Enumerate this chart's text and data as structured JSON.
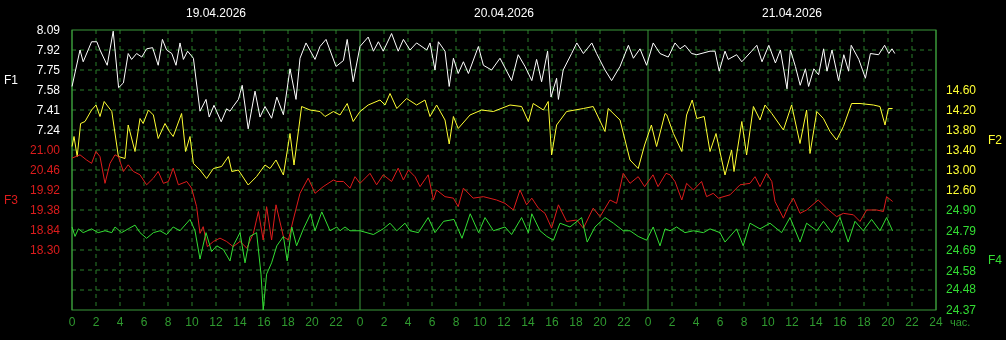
{
  "chart_data": [
    {
      "type": "line",
      "xlabel": "час.",
      "ylabel": "F1",
      "y2label": "F2",
      "xlim": [
        "2026-04-19T00:00",
        "2026-04-22T00:00"
      ],
      "xticks": [
        {
          "value": "2026-04-19T00:00",
          "label": "0"
        },
        {
          "value": "2026-04-19T02:00",
          "label": "2"
        },
        {
          "value": "2026-04-19T04:00",
          "label": "4"
        },
        {
          "value": "2026-04-19T06:00",
          "label": "6"
        },
        {
          "value": "2026-04-19T08:00",
          "label": "8"
        },
        {
          "value": "2026-04-19T10:00",
          "label": "10"
        },
        {
          "value": "2026-04-19T12:00",
          "label": "12"
        },
        {
          "value": "2026-04-19T14:00",
          "label": "14"
        },
        {
          "value": "2026-04-19T16:00",
          "label": "16"
        },
        {
          "value": "2026-04-19T18:00",
          "label": "18"
        },
        {
          "value": "2026-04-19T20:00",
          "label": "20"
        },
        {
          "value": "2026-04-19T22:00",
          "label": "22"
        },
        {
          "value": "2026-04-20T00:00",
          "label": "0"
        },
        {
          "value": "2026-04-20T02:00",
          "label": "2"
        },
        {
          "value": "2026-04-20T04:00",
          "label": "4"
        },
        {
          "value": "2026-04-20T06:00",
          "label": "6"
        },
        {
          "value": "2026-04-20T08:00",
          "label": "8"
        },
        {
          "value": "2026-04-20T10:00",
          "label": "10"
        },
        {
          "value": "2026-04-20T12:00",
          "label": "12"
        },
        {
          "value": "2026-04-20T14:00",
          "label": "14"
        },
        {
          "value": "2026-04-20T16:00",
          "label": "16"
        },
        {
          "value": "2026-04-20T18:00",
          "label": "18"
        },
        {
          "value": "2026-04-20T20:00",
          "label": "20"
        },
        {
          "value": "2026-04-20T22:00",
          "label": "22"
        },
        {
          "value": "2026-04-21T00:00",
          "label": "0"
        },
        {
          "value": "2026-04-21T02:00",
          "label": "2"
        },
        {
          "value": "2026-04-21T04:00",
          "label": "4"
        },
        {
          "value": "2026-04-21T06:00",
          "label": "6"
        },
        {
          "value": "2026-04-21T08:00",
          "label": "8"
        },
        {
          "value": "2026-04-21T10:00",
          "label": "10"
        },
        {
          "value": "2026-04-21T12:00",
          "label": "12"
        },
        {
          "value": "2026-04-21T14:00",
          "label": "14"
        },
        {
          "value": "2026-04-21T16:00",
          "label": "16"
        },
        {
          "value": "2026-04-21T18:00",
          "label": "18"
        },
        {
          "value": "2026-04-21T20:00",
          "label": "20"
        },
        {
          "value": "2026-04-21T22:00",
          "label": "22"
        },
        {
          "value": "2026-04-22T00:00",
          "label": "24"
        }
      ],
      "x2lim": [
        "2026-04-19T00:00",
        "2026-04-22T00:00"
      ],
      "x2ticks": [
        {
          "value": "2026-04-19T12:00",
          "label": "19.04.2026"
        },
        {
          "value": "2026-04-20T12:00",
          "label": "20.04.2026"
        },
        {
          "value": "2026-04-21T12:00",
          "label": "21.04.2026"
        }
      ],
      "ylim": [
        5.71,
        8.09
      ],
      "yticks": [
        8.09,
        7.92,
        7.75,
        7.58,
        7.41,
        7.24
      ],
      "y2lim": [
        10.2,
        15.8
      ],
      "y2ticks": [
        {
          "value": 14.6,
          "label": "14.60"
        },
        {
          "value": 14.2,
          "label": "14.20"
        },
        {
          "value": 13.8,
          "label": "13.80"
        },
        {
          "value": 13.4,
          "label": "13.40"
        },
        {
          "value": 13.0,
          "label": "13.00"
        },
        {
          "value": 12.6,
          "label": "12.60"
        }
      ],
      "grid": true,
      "series": [
        {
          "color": "#ffffff",
          "x": [
            "2026-04-19T00:00",
            "2026-04-19T00:40",
            "2026-04-19T00:56",
            "2026-04-19T01:38",
            "2026-04-19T02:04",
            "2026-04-19T02:20",
            "2026-04-19T02:56",
            "2026-04-19T03:26",
            "2026-04-19T03:53",
            "2026-04-19T04:17",
            "2026-04-19T04:41",
            "2026-04-19T04:58",
            "2026-04-19T05:23",
            "2026-04-19T05:49",
            "2026-04-19T06:13",
            "2026-04-19T06:43",
            "2026-04-19T07:11",
            "2026-04-19T07:32",
            "2026-04-19T07:53",
            "2026-04-19T08:19",
            "2026-04-19T08:40",
            "2026-04-19T09:00",
            "2026-04-19T09:17",
            "2026-04-19T09:38",
            "2026-04-19T10:07",
            "2026-04-19T10:40",
            "2026-04-19T11:10",
            "2026-04-19T11:26",
            "2026-04-19T11:50",
            "2026-04-19T12:26",
            "2026-04-19T12:53",
            "2026-04-19T13:10",
            "2026-04-19T13:26",
            "2026-04-19T13:52",
            "2026-04-19T14:11",
            "2026-04-19T14:41",
            "2026-04-19T15:15",
            "2026-04-19T15:40",
            "2026-04-19T16:05",
            "2026-04-19T16:38",
            "2026-04-19T17:04",
            "2026-04-19T17:37",
            "2026-04-19T18:10",
            "2026-04-19T18:40",
            "2026-04-19T19:00",
            "2026-04-19T19:30",
            "2026-04-19T20:15",
            "2026-04-19T20:40",
            "2026-04-19T21:10",
            "2026-04-19T22:00",
            "2026-04-19T22:37",
            "2026-04-19T22:56",
            "2026-04-19T23:26",
            "2026-04-20T00:00",
            "2026-04-20T00:41",
            "2026-04-20T01:07",
            "2026-04-20T01:32",
            "2026-04-20T01:56",
            "2026-04-20T02:38",
            "2026-04-20T03:11",
            "2026-04-20T03:37",
            "2026-04-20T04:10",
            "2026-04-20T04:43",
            "2026-04-20T05:34",
            "2026-04-20T05:50",
            "2026-04-20T06:15",
            "2026-04-20T06:32",
            "2026-04-20T07:05",
            "2026-04-20T07:26",
            "2026-04-20T07:47",
            "2026-04-20T08:11",
            "2026-04-20T08:37",
            "2026-04-20T09:02",
            "2026-04-20T09:52",
            "2026-04-20T10:17",
            "2026-04-20T10:58",
            "2026-04-20T11:40",
            "2026-04-20T12:38",
            "2026-04-20T13:11",
            "2026-04-20T13:45",
            "2026-04-20T14:19",
            "2026-04-20T14:43",
            "2026-04-20T15:08",
            "2026-04-20T15:38",
            "2026-04-20T15:55",
            "2026-04-20T16:23",
            "2026-04-20T16:32",
            "2026-04-20T16:56",
            "2026-04-20T17:38",
            "2026-04-20T18:04",
            "2026-04-20T18:37",
            "2026-04-20T19:19",
            "2026-04-20T19:43",
            "2026-04-20T20:25",
            "2026-04-20T20:58",
            "2026-04-20T21:40",
            "2026-04-20T22:22",
            "2026-04-20T22:47",
            "2026-04-20T23:20",
            "2026-04-20T23:53",
            "2026-04-21T00:26",
            "2026-04-21T01:00",
            "2026-04-21T01:41",
            "2026-04-21T01:50",
            "2026-04-21T02:15",
            "2026-04-21T02:40",
            "2026-04-21T03:05",
            "2026-04-21T03:38",
            "2026-04-21T04:04",
            "2026-04-21T05:10",
            "2026-04-21T05:35",
            "2026-04-21T05:56",
            "2026-04-21T06:25",
            "2026-04-21T06:41",
            "2026-04-21T07:23",
            "2026-04-21T07:49",
            "2026-04-21T08:38",
            "2026-04-21T09:04",
            "2026-04-21T09:30",
            "2026-04-21T10:04",
            "2026-04-21T10:37",
            "2026-04-21T11:02",
            "2026-04-21T11:35",
            "2026-04-21T11:52",
            "2026-04-21T12:17",
            "2026-04-21T12:41",
            "2026-04-21T13:07",
            "2026-04-21T13:23",
            "2026-04-21T13:49",
            "2026-04-21T14:13",
            "2026-04-21T14:38",
            "2026-04-21T14:55",
            "2026-04-21T15:20",
            "2026-04-21T15:53",
            "2026-04-21T16:19",
            "2026-04-21T16:43",
            "2026-04-21T16:56",
            "2026-04-21T17:34",
            "2026-04-21T18:07",
            "2026-04-21T18:32",
            "2026-04-21T19:13",
            "2026-04-21T19:43",
            "2026-04-21T20:04",
            "2026-04-21T20:20",
            "2026-04-21T20:34"
          ],
          "values": [
            7.61,
            7.92,
            7.82,
            7.99,
            7.99,
            7.92,
            7.79,
            8.08,
            7.6,
            7.64,
            7.89,
            7.84,
            7.89,
            7.86,
            7.93,
            7.94,
            7.79,
            8.01,
            7.92,
            7.89,
            7.79,
            7.98,
            7.84,
            7.91,
            7.85,
            7.4,
            7.5,
            7.35,
            7.45,
            7.31,
            7.42,
            7.4,
            7.44,
            7.5,
            7.62,
            7.25,
            7.57,
            7.35,
            7.44,
            7.34,
            7.52,
            7.37,
            7.76,
            7.5,
            7.85,
            7.98,
            7.84,
            7.95,
            8.01,
            7.78,
            7.83,
            8.01,
            7.65,
            7.95,
            8.03,
            7.91,
            7.99,
            7.91,
            8.06,
            7.91,
            8.01,
            7.92,
            7.98,
            7.92,
            7.98,
            7.75,
            7.99,
            7.91,
            7.61,
            7.85,
            7.72,
            7.82,
            7.72,
            7.95,
            7.79,
            7.75,
            7.85,
            7.66,
            7.88,
            7.78,
            7.66,
            7.84,
            7.65,
            7.91,
            7.52,
            7.68,
            7.5,
            7.75,
            7.89,
            7.98,
            7.89,
            7.98,
            7.89,
            7.75,
            7.66,
            7.78,
            7.96,
            7.85,
            7.93,
            7.79,
            7.98,
            7.89,
            7.86,
            7.89,
            7.98,
            7.93,
            7.96,
            7.89,
            7.88,
            7.91,
            7.91,
            7.74,
            7.91,
            7.84,
            7.88,
            7.82,
            7.91,
            7.96,
            7.82,
            7.96,
            7.81,
            7.92,
            7.59,
            7.92,
            7.78,
            7.62,
            7.76,
            7.61,
            7.76,
            7.71,
            7.93,
            7.74,
            7.92,
            7.66,
            7.88,
            7.74,
            7.96,
            7.84,
            7.68,
            7.89,
            7.88,
            7.96,
            7.89,
            7.93,
            7.89
          ]
        },
        {
          "axis": "y2",
          "color": "#ffff33",
          "x": [
            "2026-04-19T00:00",
            "2026-04-19T00:10",
            "2026-04-19T00:26",
            "2026-04-19T00:43",
            "2026-04-19T01:05",
            "2026-04-19T01:38",
            "2026-04-19T02:00",
            "2026-04-19T02:20",
            "2026-04-19T02:41",
            "2026-04-19T03:19",
            "2026-04-19T03:52",
            "2026-04-19T04:25",
            "2026-04-19T04:41",
            "2026-04-19T05:15",
            "2026-04-19T05:40",
            "2026-04-19T05:56",
            "2026-04-19T06:22",
            "2026-04-19T06:47",
            "2026-04-19T07:11",
            "2026-04-19T07:45",
            "2026-04-19T08:07",
            "2026-04-19T08:26",
            "2026-04-19T09:08",
            "2026-04-19T09:28",
            "2026-04-19T09:50",
            "2026-04-19T10:07",
            "2026-04-19T10:40",
            "2026-04-19T11:13",
            "2026-04-19T11:47",
            "2026-04-19T12:28",
            "2026-04-19T13:02",
            "2026-04-19T13:19",
            "2026-04-19T13:52",
            "2026-04-19T14:41",
            "2026-04-19T15:23",
            "2026-04-19T16:05",
            "2026-04-19T16:30",
            "2026-04-19T17:00",
            "2026-04-19T17:37",
            "2026-04-19T18:10",
            "2026-04-19T18:30",
            "2026-04-19T19:08",
            "2026-04-19T19:50",
            "2026-04-19T20:40",
            "2026-04-19T21:05",
            "2026-04-19T21:47",
            "2026-04-19T22:20",
            "2026-04-19T22:56",
            "2026-04-19T23:26",
            "2026-04-20T00:00",
            "2026-04-20T00:41",
            "2026-04-20T01:40",
            "2026-04-20T02:05",
            "2026-04-20T02:30",
            "2026-04-20T03:04",
            "2026-04-20T03:53",
            "2026-04-20T04:43",
            "2026-04-20T05:25",
            "2026-04-20T05:50",
            "2026-04-20T06:23",
            "2026-04-20T07:05",
            "2026-04-20T07:26",
            "2026-04-20T07:47",
            "2026-04-20T08:11",
            "2026-04-20T09:10",
            "2026-04-20T10:08",
            "2026-04-20T11:07",
            "2026-04-20T12:30",
            "2026-04-20T13:28",
            "2026-04-20T14:02",
            "2026-04-20T14:26",
            "2026-04-20T15:17",
            "2026-04-20T15:41",
            "2026-04-20T15:58",
            "2026-04-20T16:23",
            "2026-04-20T17:13",
            "2026-04-20T18:37",
            "2026-04-20T19:26",
            "2026-04-20T20:25",
            "2026-04-20T20:41",
            "2026-04-20T21:40",
            "2026-04-20T22:30",
            "2026-04-20T23:11",
            "2026-04-20T23:43",
            "2026-04-21T00:17",
            "2026-04-21T00:43",
            "2026-04-21T01:25",
            "2026-04-21T01:34",
            "2026-04-21T02:07",
            "2026-04-21T02:49",
            "2026-04-21T03:13",
            "2026-04-21T03:41",
            "2026-04-21T04:04",
            "2026-04-21T04:41",
            "2026-04-21T05:10",
            "2026-04-21T05:40",
            "2026-04-21T06:25",
            "2026-04-21T06:58",
            "2026-04-21T07:10",
            "2026-04-21T07:49",
            "2026-04-21T08:13",
            "2026-04-21T08:47",
            "2026-04-21T09:20",
            "2026-04-21T09:45",
            "2026-04-21T10:19",
            "2026-04-21T11:17",
            "2026-04-21T11:58",
            "2026-04-21T12:40",
            "2026-04-21T13:13",
            "2026-04-21T13:30",
            "2026-04-21T14:04",
            "2026-04-21T14:37",
            "2026-04-21T15:10",
            "2026-04-21T15:43",
            "2026-04-21T16:17",
            "2026-04-21T16:58",
            "2026-04-21T17:40",
            "2026-04-21T18:47",
            "2026-04-21T19:20",
            "2026-04-21T19:45",
            "2026-04-21T20:02",
            "2026-04-21T20:23"
          ],
          "values": [
            13.47,
            13.67,
            13.27,
            13.93,
            13.97,
            14.2,
            14.3,
            14.07,
            14.37,
            14.17,
            13.27,
            13.23,
            13.9,
            13.37,
            14.03,
            13.93,
            14.2,
            14.1,
            13.63,
            13.93,
            13.77,
            13.67,
            14.13,
            13.37,
            13.67,
            13.13,
            13.0,
            12.83,
            13.03,
            13.07,
            13.27,
            12.97,
            13.0,
            12.7,
            12.87,
            13.1,
            13.03,
            13.2,
            12.9,
            13.73,
            13.1,
            14.27,
            14.2,
            14.17,
            14.07,
            14.17,
            14.1,
            14.33,
            13.97,
            14.17,
            14.3,
            14.4,
            14.3,
            14.53,
            14.23,
            14.43,
            14.3,
            14.4,
            14.07,
            14.3,
            14.0,
            13.52,
            14.07,
            13.83,
            14.1,
            14.2,
            14.17,
            14.3,
            14.27,
            13.97,
            14.33,
            14.2,
            14.37,
            13.3,
            13.9,
            14.17,
            14.23,
            14.27,
            13.77,
            14.23,
            14.0,
            13.2,
            13.03,
            13.5,
            13.9,
            13.47,
            14.13,
            14.1,
            13.73,
            13.37,
            14.1,
            14.4,
            14.03,
            14.07,
            13.37,
            13.73,
            12.9,
            13.4,
            12.97,
            13.97,
            13.3,
            14.27,
            14.0,
            14.3,
            14.13,
            13.8,
            14.3,
            13.53,
            14.2,
            13.33,
            14.17,
            14.03,
            13.77,
            13.6,
            13.87,
            14.33,
            14.33,
            14.3,
            14.27,
            13.9,
            14.23,
            14.23
          ]
        }
      ]
    },
    {
      "type": "line",
      "ylabel": "F3",
      "y2label": "F4",
      "tick_labels": "y",
      "xlim": [
        "2026-04-19T00:00",
        "2026-04-22T00:00"
      ],
      "ylim": [
        16.68,
        24.24
      ],
      "yticks": [
        {
          "value": 21.0,
          "label": "21.00"
        },
        20.46,
        19.92,
        19.38,
        18.84,
        {
          "value": 18.3,
          "label": "18.30"
        }
      ],
      "y2lim": [
        24.37,
        25.854
      ],
      "y2ticks": [
        {
          "value": 24.9,
          "label": "24.90"
        },
        24.79,
        24.69,
        24.58,
        24.48,
        24.37
      ],
      "series": [
        {
          "color": "#dd1c1c",
          "x": [
            "2026-04-19T00:00",
            "2026-04-19T00:40",
            "2026-04-19T01:13",
            "2026-04-19T01:38",
            "2026-04-19T02:00",
            "2026-04-19T02:20",
            "2026-04-19T02:45",
            "2026-04-19T03:10",
            "2026-04-19T03:35",
            "2026-04-19T03:52",
            "2026-04-19T04:17",
            "2026-04-19T04:41",
            "2026-04-19T05:07",
            "2026-04-19T05:40",
            "2026-04-19T06:13",
            "2026-04-19T06:47",
            "2026-04-19T07:11",
            "2026-04-19T07:37",
            "2026-04-19T08:02",
            "2026-04-19T08:26",
            "2026-04-19T08:52",
            "2026-04-19T09:34",
            "2026-04-19T09:58",
            "2026-04-19T10:23",
            "2026-04-19T10:40",
            "2026-04-19T10:56",
            "2026-04-19T11:17",
            "2026-04-19T11:47",
            "2026-04-19T12:20",
            "2026-04-19T12:53",
            "2026-04-19T13:26",
            "2026-04-19T14:00",
            "2026-04-19T14:34",
            "2026-04-19T15:07",
            "2026-04-19T15:32",
            "2026-04-19T15:56",
            "2026-04-19T16:13",
            "2026-04-19T16:38",
            "2026-04-19T17:00",
            "2026-04-19T17:37",
            "2026-04-19T18:02",
            "2026-04-19T18:26",
            "2026-04-19T19:00",
            "2026-04-19T19:41",
            "2026-04-19T20:15",
            "2026-04-19T20:56",
            "2026-04-19T21:47",
            "2026-04-19T22:04",
            "2026-04-19T22:37",
            "2026-04-19T23:10",
            "2026-04-19T23:35",
            "2026-04-20T00:00",
            "2026-04-20T00:50",
            "2026-04-20T01:23",
            "2026-04-20T01:56",
            "2026-04-20T02:38",
            "2026-04-20T03:11",
            "2026-04-20T03:37",
            "2026-04-20T04:02",
            "2026-04-20T04:35",
            "2026-04-20T05:00",
            "2026-04-20T05:41",
            "2026-04-20T06:07",
            "2026-04-20T06:23",
            "2026-04-20T07:05",
            "2026-04-20T07:47",
            "2026-04-20T08:11",
            "2026-04-20T08:37",
            "2026-04-20T09:26",
            "2026-04-20T10:17",
            "2026-04-20T11:23",
            "2026-04-20T12:05",
            "2026-04-20T12:47",
            "2026-04-20T13:20",
            "2026-04-20T13:53",
            "2026-04-20T14:19",
            "2026-04-20T14:52",
            "2026-04-20T15:25",
            "2026-04-20T15:58",
            "2026-04-20T16:32",
            "2026-04-20T17:13",
            "2026-04-20T18:04",
            "2026-04-20T18:37",
            "2026-04-20T19:26",
            "2026-04-20T20:00",
            "2026-04-20T20:50",
            "2026-04-20T21:23",
            "2026-04-20T21:56",
            "2026-04-20T22:30",
            "2026-04-20T23:11",
            "2026-04-20T23:43",
            "2026-04-21T00:25",
            "2026-04-21T00:50",
            "2026-04-21T01:30",
            "2026-04-21T01:50",
            "2026-04-21T02:15",
            "2026-04-21T02:49",
            "2026-04-21T03:13",
            "2026-04-21T03:47",
            "2026-04-21T04:28",
            "2026-04-21T04:53",
            "2026-04-21T05:26",
            "2026-04-21T05:52",
            "2026-04-21T06:50",
            "2026-04-21T07:40",
            "2026-04-21T08:30",
            "2026-04-21T08:55",
            "2026-04-21T09:20",
            "2026-04-21T09:53",
            "2026-04-21T10:19",
            "2026-04-21T10:35",
            "2026-04-21T11:17",
            "2026-04-21T11:41",
            "2026-04-21T12:07",
            "2026-04-21T12:40",
            "2026-04-21T13:13",
            "2026-04-21T14:11",
            "2026-04-21T14:53",
            "2026-04-21T15:43",
            "2026-04-21T16:17",
            "2026-04-21T17:07",
            "2026-04-21T17:40",
            "2026-04-21T18:13",
            "2026-04-21T19:04",
            "2026-04-21T19:37",
            "2026-04-21T19:53",
            "2026-04-21T20:23"
          ],
          "values": [
            20.78,
            20.87,
            20.73,
            20.64,
            20.96,
            20.82,
            20.1,
            20.64,
            20.87,
            20.82,
            20.42,
            20.6,
            20.42,
            20.33,
            20.06,
            20.24,
            20.42,
            20.1,
            20.15,
            20.51,
            20.06,
            20.15,
            19.97,
            19.47,
            18.75,
            18.93,
            18.39,
            18.53,
            18.62,
            18.53,
            18.39,
            18.53,
            18.35,
            18.75,
            19.34,
            18.57,
            19.47,
            18.57,
            19.52,
            18.66,
            18.57,
            19.11,
            19.83,
            20.24,
            19.83,
            20.01,
            20.19,
            20.15,
            20.15,
            19.97,
            20.28,
            20.1,
            20.37,
            20.06,
            20.33,
            20.15,
            20.51,
            20.19,
            20.46,
            20.28,
            20.01,
            20.33,
            19.65,
            19.92,
            19.74,
            19.7,
            19.47,
            19.97,
            19.7,
            19.74,
            19.65,
            19.56,
            19.38,
            19.92,
            19.52,
            19.7,
            19.43,
            19.29,
            18.89,
            19.52,
            19.07,
            19.11,
            18.89,
            19.43,
            19.2,
            19.65,
            19.56,
            20.37,
            20.1,
            20.28,
            20.01,
            20.33,
            20.01,
            20.37,
            20.33,
            20.15,
            19.65,
            20.1,
            19.92,
            20.15,
            19.74,
            19.83,
            19.7,
            19.79,
            20.06,
            20.1,
            20.28,
            20.01,
            20.37,
            20.15,
            19.61,
            19.16,
            19.47,
            19.7,
            19.29,
            19.38,
            19.65,
            19.43,
            19.2,
            19.29,
            19.25,
            19.07,
            19.38,
            19.38,
            19.34,
            19.74,
            19.61
          ]
        },
        {
          "axis": "y2",
          "color": "#33dd33",
          "x": [
            "2026-04-19T00:00",
            "2026-04-19T00:15",
            "2026-04-19T00:32",
            "2026-04-19T00:56",
            "2026-04-19T01:38",
            "2026-04-19T02:11",
            "2026-04-19T02:45",
            "2026-04-19T03:19",
            "2026-04-19T03:35",
            "2026-04-19T04:08",
            "2026-04-19T04:41",
            "2026-04-19T05:15",
            "2026-04-19T05:40",
            "2026-04-19T06:13",
            "2026-04-19T06:47",
            "2026-04-19T07:20",
            "2026-04-19T07:53",
            "2026-04-19T08:26",
            "2026-04-19T09:00",
            "2026-04-19T09:50",
            "2026-04-19T10:15",
            "2026-04-19T10:40",
            "2026-04-19T11:10",
            "2026-04-19T11:38",
            "2026-04-19T12:04",
            "2026-04-19T12:37",
            "2026-04-19T13:10",
            "2026-04-19T13:26",
            "2026-04-19T14:00",
            "2026-04-19T14:25",
            "2026-04-19T14:50",
            "2026-04-19T15:23",
            "2026-04-19T15:45",
            "2026-04-19T15:56",
            "2026-04-19T16:13",
            "2026-04-19T16:38",
            "2026-04-19T17:04",
            "2026-04-19T17:37",
            "2026-04-19T17:56",
            "2026-04-19T18:19",
            "2026-04-19T18:43",
            "2026-04-19T19:17",
            "2026-04-19T19:53",
            "2026-04-19T20:15",
            "2026-04-19T20:49",
            "2026-04-19T21:30",
            "2026-04-19T22:04",
            "2026-04-19T22:20",
            "2026-04-19T22:45",
            "2026-04-19T23:10",
            "2026-04-20T00:00",
            "2026-04-20T01:07",
            "2026-04-20T01:56",
            "2026-04-20T02:30",
            "2026-04-20T03:04",
            "2026-04-20T03:45",
            "2026-04-20T04:10",
            "2026-04-20T04:52",
            "2026-04-20T05:41",
            "2026-04-20T06:15",
            "2026-04-20T06:58",
            "2026-04-20T07:50",
            "2026-04-20T08:30",
            "2026-04-20T09:11",
            "2026-04-20T09:53",
            "2026-04-20T10:25",
            "2026-04-20T11:07",
            "2026-04-20T12:05",
            "2026-04-20T12:38",
            "2026-04-20T13:28",
            "2026-04-20T14:02",
            "2026-04-20T14:19",
            "2026-04-20T15:00",
            "2026-04-20T15:34",
            "2026-04-20T16:07",
            "2026-04-20T16:40",
            "2026-04-20T17:30",
            "2026-04-20T18:28",
            "2026-04-20T18:56",
            "2026-04-20T19:35",
            "2026-04-20T20:25",
            "2026-04-20T21:07",
            "2026-04-20T21:56",
            "2026-04-20T22:30",
            "2026-04-20T23:11",
            "2026-04-20T23:53",
            "2026-04-21T00:26",
            "2026-04-21T01:00",
            "2026-04-21T01:25",
            "2026-04-21T01:50",
            "2026-04-21T02:23",
            "2026-04-21T03:05",
            "2026-04-21T03:47",
            "2026-04-21T04:37",
            "2026-04-21T05:10",
            "2026-04-21T06:00",
            "2026-04-21T06:25",
            "2026-04-21T07:23",
            "2026-04-21T07:56",
            "2026-04-21T08:30",
            "2026-04-21T09:20",
            "2026-04-21T10:10",
            "2026-04-21T11:08",
            "2026-04-21T11:50",
            "2026-04-21T12:40",
            "2026-04-21T13:13",
            "2026-04-21T14:04",
            "2026-04-21T14:37",
            "2026-04-21T15:19",
            "2026-04-21T16:00",
            "2026-04-21T16:41",
            "2026-04-21T17:15",
            "2026-04-21T17:56",
            "2026-04-21T18:38",
            "2026-04-21T19:20",
            "2026-04-21T19:53",
            "2026-04-21T20:23"
          ],
          "values": [
            24.81,
            24.76,
            24.8,
            24.78,
            24.8,
            24.78,
            24.79,
            24.78,
            24.81,
            24.78,
            24.8,
            24.82,
            24.78,
            24.75,
            24.78,
            24.79,
            24.77,
            24.81,
            24.79,
            24.85,
            24.79,
            24.64,
            24.78,
            24.68,
            24.71,
            24.69,
            24.63,
            24.71,
            24.78,
            24.62,
            24.76,
            24.78,
            24.56,
            24.37,
            24.56,
            24.62,
            24.71,
            24.76,
            24.63,
            24.81,
            24.71,
            24.8,
            24.88,
            24.79,
            24.89,
            24.79,
            24.81,
            24.79,
            24.81,
            24.79,
            24.79,
            24.77,
            24.8,
            24.83,
            24.79,
            24.83,
            24.79,
            24.78,
            24.86,
            24.78,
            24.84,
            24.85,
            24.75,
            24.88,
            24.78,
            24.86,
            24.79,
            24.81,
            24.77,
            24.86,
            24.78,
            24.88,
            24.79,
            24.76,
            24.74,
            24.83,
            24.81,
            24.86,
            24.73,
            24.81,
            24.86,
            24.83,
            24.79,
            24.79,
            24.76,
            24.74,
            24.81,
            24.71,
            24.8,
            24.79,
            24.81,
            24.78,
            24.79,
            24.78,
            24.8,
            24.78,
            24.73,
            24.8,
            24.71,
            24.83,
            24.8,
            24.83,
            24.78,
            24.86,
            24.73,
            24.83,
            24.79,
            24.84,
            24.78,
            24.86,
            24.73,
            24.84,
            24.79,
            24.85,
            24.79,
            24.86,
            24.79
          ]
        }
      ]
    }
  ]
}
